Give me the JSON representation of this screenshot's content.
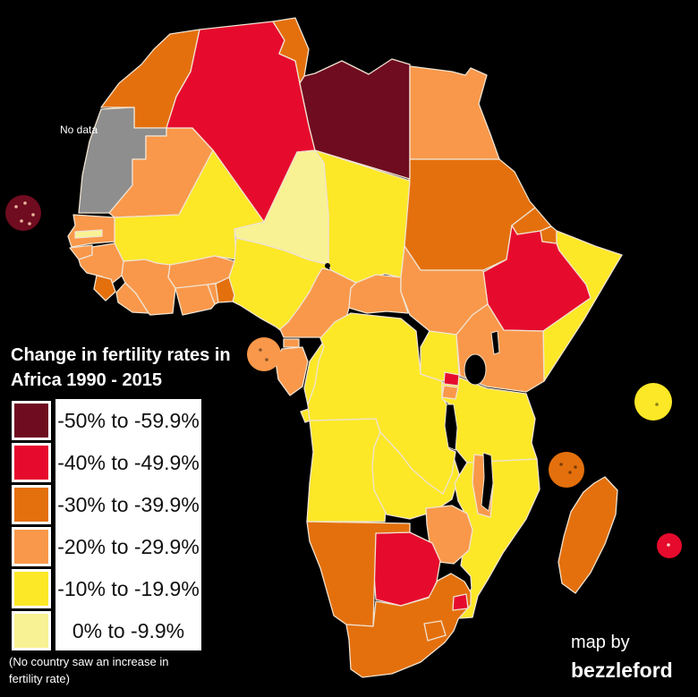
{
  "title": {
    "line1": "Change in fertility rates in",
    "line2": "Africa 1990 - 2015"
  },
  "no_data_label": "No data",
  "footnote": {
    "line1": "(No country saw an increase in",
    "line2": "fertility rate)"
  },
  "credit": {
    "line1": "map by",
    "line2": "bezzleford"
  },
  "legend": {
    "items": [
      {
        "key": "cat1",
        "label": "-50% to -59.9%",
        "color": "#6f0c20"
      },
      {
        "key": "cat2",
        "label": "-40% to -49.9%",
        "color": "#e60b2d"
      },
      {
        "key": "cat3",
        "label": "-30% to -39.9%",
        "color": "#e4700d"
      },
      {
        "key": "cat4",
        "label": "-20% to -29.9%",
        "color": "#f9984a"
      },
      {
        "key": "cat5",
        "label": "-10% to -19.9%",
        "color": "#fce827"
      },
      {
        "key": "cat6",
        "label": "0% to -9.9%",
        "color": "#f8f294"
      }
    ],
    "no_data_color": "#8e8e8e"
  },
  "map": {
    "ocean_color": "#000000",
    "border_color": "#f0e3d2",
    "countries": [
      {
        "id": "morocco",
        "category": "cat3"
      },
      {
        "id": "wsahara",
        "category": "no_data"
      },
      {
        "id": "mauritania",
        "category": "cat4"
      },
      {
        "id": "algeria",
        "category": "cat2"
      },
      {
        "id": "tunisia",
        "category": "cat3"
      },
      {
        "id": "libya",
        "category": "cat1"
      },
      {
        "id": "egypt",
        "category": "cat4"
      },
      {
        "id": "sudan",
        "category": "cat3"
      },
      {
        "id": "eritrea",
        "category": "cat3"
      },
      {
        "id": "ethiopia",
        "category": "cat2"
      },
      {
        "id": "djibouti",
        "category": "cat3"
      },
      {
        "id": "somalia",
        "category": "cat5"
      },
      {
        "id": "chad",
        "category": "cat5"
      },
      {
        "id": "niger",
        "category": "cat6"
      },
      {
        "id": "mali",
        "category": "cat5"
      },
      {
        "id": "senegal",
        "category": "cat4"
      },
      {
        "id": "gambia",
        "category": "cat6"
      },
      {
        "id": "gbissau",
        "category": "cat4"
      },
      {
        "id": "guinea",
        "category": "cat4"
      },
      {
        "id": "sleone",
        "category": "cat3"
      },
      {
        "id": "liberia",
        "category": "cat4"
      },
      {
        "id": "civoire",
        "category": "cat4"
      },
      {
        "id": "burkina",
        "category": "cat4"
      },
      {
        "id": "ghana",
        "category": "cat4"
      },
      {
        "id": "togo",
        "category": "cat4"
      },
      {
        "id": "benin",
        "category": "cat3"
      },
      {
        "id": "nigeria",
        "category": "cat5"
      },
      {
        "id": "cameroon",
        "category": "cat4"
      },
      {
        "id": "car",
        "category": "cat4"
      },
      {
        "id": "ssudan",
        "category": "cat4"
      },
      {
        "id": "eqguinea",
        "category": "cat4"
      },
      {
        "id": "gabon",
        "category": "cat4"
      },
      {
        "id": "congo",
        "category": "cat5"
      },
      {
        "id": "angola",
        "category": "cat5"
      },
      {
        "id": "cabinda",
        "category": "cat5"
      },
      {
        "id": "zambia",
        "category": "cat5"
      },
      {
        "id": "drc",
        "category": "cat5"
      },
      {
        "id": "uganda",
        "category": "cat5"
      },
      {
        "id": "kenya",
        "category": "cat4"
      },
      {
        "id": "tanzania",
        "category": "cat5"
      },
      {
        "id": "rwanda",
        "category": "cat2"
      },
      {
        "id": "burundi",
        "category": "cat4"
      },
      {
        "id": "mozambique",
        "category": "cat5"
      },
      {
        "id": "malawi",
        "category": "cat4"
      },
      {
        "id": "zimbabwe",
        "category": "cat4"
      },
      {
        "id": "botswana",
        "category": "cat2"
      },
      {
        "id": "namibia",
        "category": "cat3"
      },
      {
        "id": "safrica",
        "category": "cat3"
      },
      {
        "id": "lesotho",
        "category": "cat3"
      },
      {
        "id": "eswatini",
        "category": "cat2"
      },
      {
        "id": "madagascar",
        "category": "cat3"
      },
      {
        "id": "capeverde",
        "category": "cat1"
      },
      {
        "id": "saotome",
        "category": "cat4"
      },
      {
        "id": "comoros",
        "category": "cat3"
      },
      {
        "id": "seychelles",
        "category": "cat5"
      },
      {
        "id": "mauritius",
        "category": "cat2"
      }
    ]
  }
}
